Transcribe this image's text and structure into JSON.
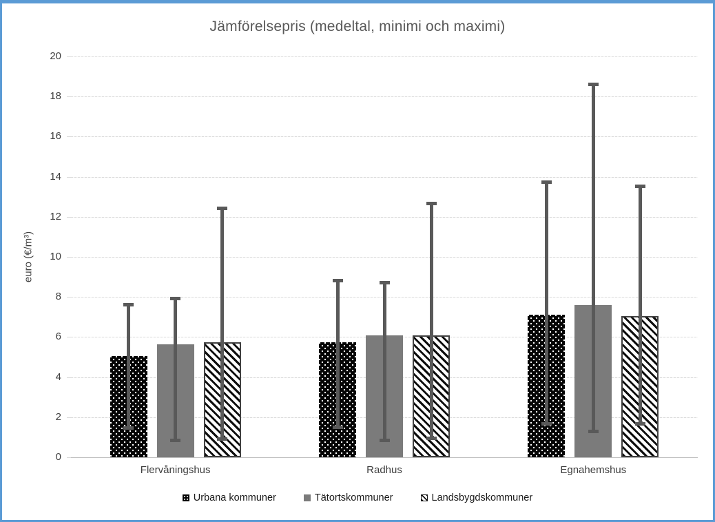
{
  "window": {
    "border_color": "#5B9BD5",
    "background_color": "#FFFFFF"
  },
  "chart_data": {
    "type": "bar",
    "title": "Jämförelsepris (medeltal, minimi och maximi)",
    "ylabel": "euro (€/m³)",
    "xlabel": "",
    "categories": [
      "Flervåningshus",
      "Radhus",
      "Egnahemshus"
    ],
    "series": [
      {
        "name": "Urbana kommuner",
        "pattern": "dots",
        "values": [
          5.05,
          5.75,
          7.1
        ],
        "min": [
          1.4,
          1.45,
          1.6
        ],
        "max": [
          7.7,
          8.9,
          13.8
        ]
      },
      {
        "name": "Tätortskommuner",
        "pattern": "solid-gray",
        "values": [
          5.65,
          6.1,
          7.6
        ],
        "min": [
          0.8,
          0.8,
          1.25
        ],
        "max": [
          8.0,
          8.8,
          18.7
        ]
      },
      {
        "name": "Landsbygdskommuner",
        "pattern": "diagonal-stripes",
        "values": [
          5.75,
          6.1,
          7.05
        ],
        "min": [
          0.85,
          0.9,
          1.6
        ],
        "max": [
          12.5,
          12.75,
          13.6
        ]
      }
    ],
    "error_bars": "min-max whiskers per bar",
    "ylim": [
      0,
      20
    ],
    "yticks": [
      0,
      2,
      4,
      6,
      8,
      10,
      12,
      14,
      16,
      18,
      20
    ],
    "grid": true,
    "gridline_style": "dashed light gray, horizontal only",
    "legend_position": "bottom",
    "colors": {
      "title": "#595959",
      "error_bar": "#595959",
      "series_gray_fill": "#7B7B7B",
      "series_dots": "black with white dots",
      "series_stripes": "white with black diagonal stripes",
      "gridline": "#D9D9D9",
      "axis_line": "#BFBFBF",
      "tick_label": "#3F3F3F",
      "frame_border": "#5B9BD5"
    }
  }
}
